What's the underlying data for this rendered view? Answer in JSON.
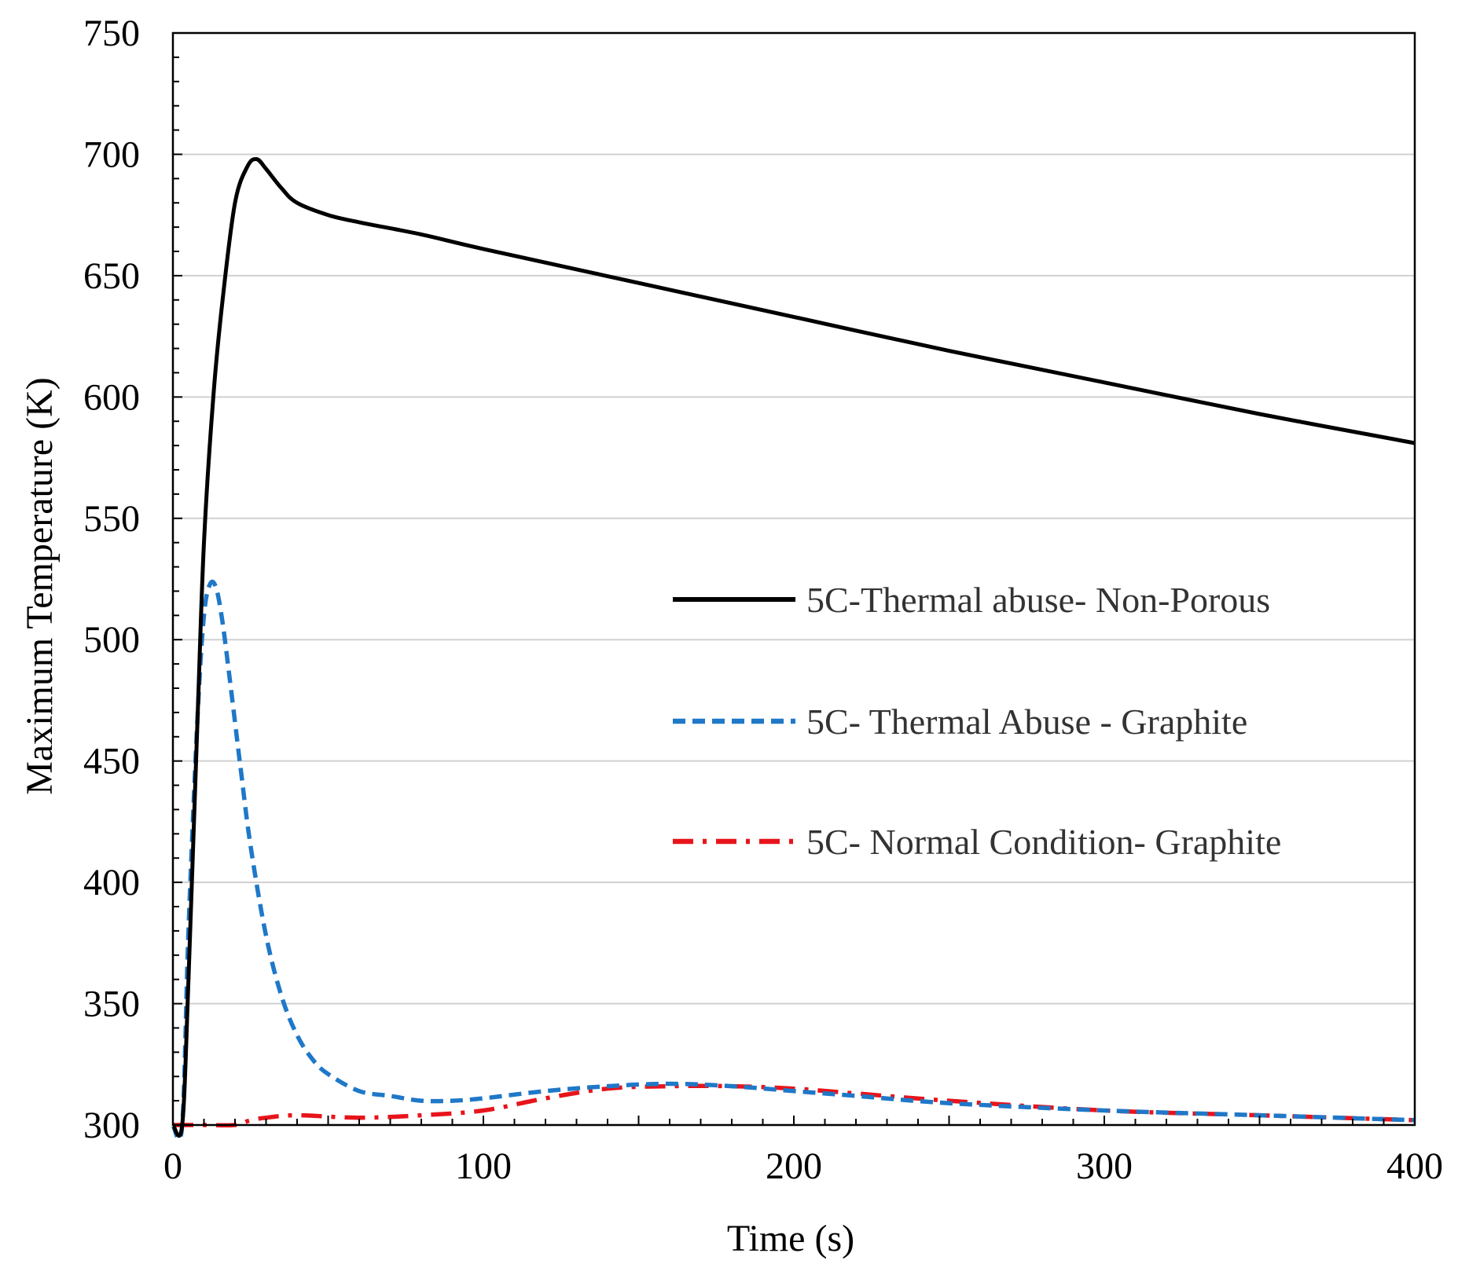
{
  "chart_data": {
    "type": "line",
    "title": "",
    "xlabel": "Time (s)",
    "ylabel": "Maximum Temperature (K)",
    "xlim": [
      0,
      400
    ],
    "ylim": [
      300,
      750
    ],
    "xticks": [
      0,
      100,
      200,
      300,
      400
    ],
    "yticks": [
      300,
      350,
      400,
      450,
      500,
      550,
      600,
      650,
      700,
      750
    ],
    "grid": "horizontal",
    "legend_position": "center-right",
    "series": [
      {
        "name": "5C-Thermal abuse- Non-Porous",
        "color": "#000000",
        "style": "solid",
        "x": [
          0,
          3,
          5,
          8,
          10,
          13,
          16,
          20,
          24,
          27,
          30,
          35,
          40,
          50,
          60,
          80,
          100,
          150,
          200,
          250,
          300,
          350,
          400
        ],
        "y": [
          300,
          300,
          360,
          470,
          540,
          600,
          640,
          680,
          695,
          698,
          694,
          686,
          680,
          675,
          672,
          667,
          661,
          647,
          633,
          619,
          606,
          593,
          581
        ]
      },
      {
        "name": "5C- Thermal Abuse - Graphite",
        "color": "#1f78c8",
        "style": "dashed",
        "x": [
          0,
          3,
          5,
          8,
          10,
          12,
          14,
          16,
          18,
          20,
          22,
          25,
          30,
          35,
          40,
          45,
          50,
          60,
          70,
          80,
          90,
          100,
          120,
          140,
          160,
          180,
          200,
          220,
          250,
          300,
          350,
          400
        ],
        "y": [
          300,
          300,
          380,
          470,
          510,
          523,
          521,
          507,
          487,
          466,
          445,
          415,
          378,
          353,
          337,
          327,
          321,
          314,
          312,
          310,
          310,
          311,
          314,
          316,
          317,
          316,
          314,
          312,
          309,
          306,
          304,
          302
        ]
      },
      {
        "name": "5C- Normal Condition- Graphite",
        "color": "#e8141b",
        "style": "dashdot",
        "x": [
          0,
          10,
          20,
          25,
          30,
          40,
          60,
          80,
          100,
          120,
          140,
          160,
          180,
          200,
          220,
          250,
          300,
          350,
          400
        ],
        "y": [
          300,
          300,
          300,
          302,
          303,
          304,
          303,
          304,
          306,
          311,
          315,
          316,
          316,
          315,
          313,
          310,
          306,
          304,
          302
        ]
      }
    ]
  }
}
